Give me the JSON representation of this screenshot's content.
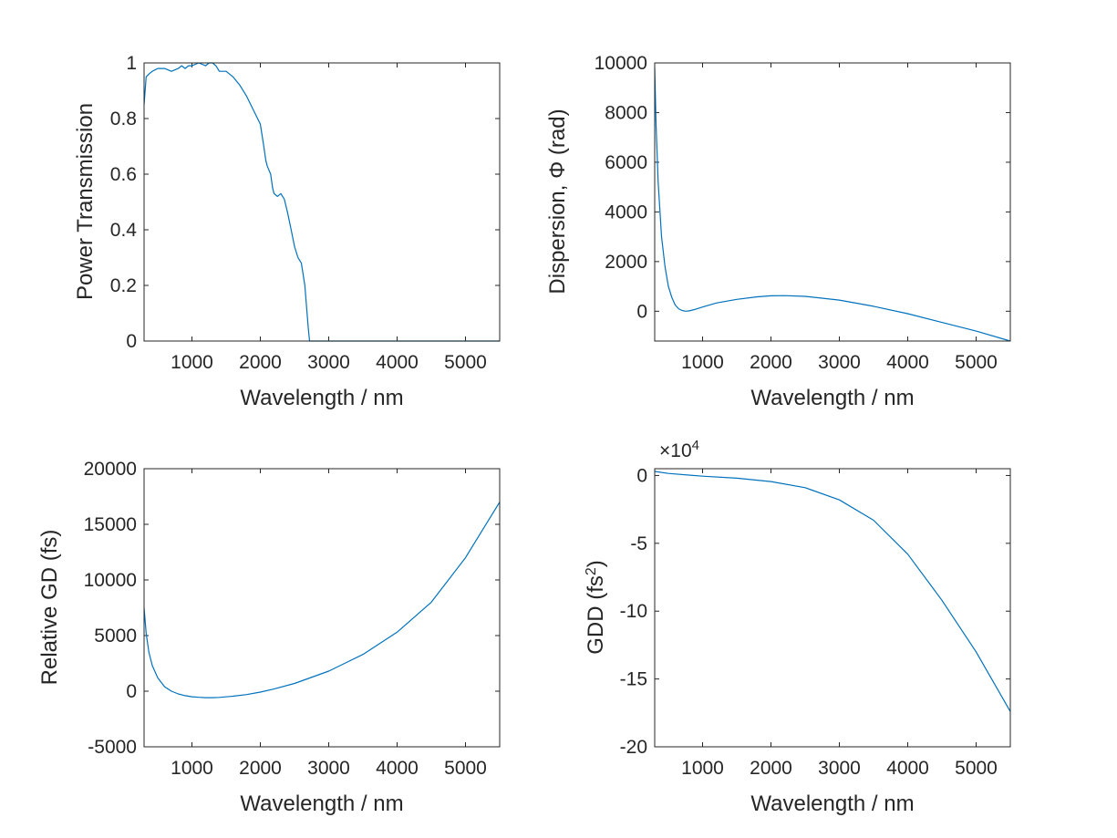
{
  "colors": {
    "series": "#0072BD",
    "axis": "#262626",
    "background": "#ffffff"
  },
  "chart_data": [
    {
      "type": "line",
      "xlabel": "Wavelength / nm",
      "ylabel": "Power Transmission",
      "xlim": [
        300,
        5500
      ],
      "ylim": [
        0,
        1
      ],
      "xticks": [
        1000,
        2000,
        3000,
        4000,
        5000
      ],
      "yticks": [
        0,
        0.2,
        0.4,
        0.6,
        0.8,
        1
      ],
      "ytick_labels": [
        "0",
        "0.2",
        "0.4",
        "0.6",
        "0.8",
        "1"
      ],
      "grid": false,
      "series": [
        {
          "x": [
            300,
            330,
            370,
            420,
            500,
            600,
            700,
            800,
            850,
            900,
            950,
            1000,
            1100,
            1200,
            1250,
            1300,
            1350,
            1400,
            1500,
            1600,
            1700,
            1800,
            1900,
            2000,
            2050,
            2080,
            2100,
            2150,
            2180,
            2200,
            2250,
            2300,
            2350,
            2400,
            2450,
            2500,
            2550,
            2600,
            2650,
            2700,
            2720,
            2800,
            3000,
            3500,
            4000,
            4500,
            5000,
            5500
          ],
          "y": [
            0.85,
            0.95,
            0.96,
            0.97,
            0.98,
            0.98,
            0.97,
            0.98,
            0.99,
            0.98,
            0.99,
            0.99,
            1.0,
            0.99,
            1.0,
            1.0,
            0.99,
            0.97,
            0.97,
            0.95,
            0.92,
            0.88,
            0.83,
            0.78,
            0.7,
            0.65,
            0.63,
            0.6,
            0.55,
            0.53,
            0.52,
            0.53,
            0.51,
            0.46,
            0.4,
            0.34,
            0.3,
            0.28,
            0.2,
            0.05,
            0.0,
            0.0,
            0.0,
            0.0,
            0.0,
            0.0,
            0.0,
            0.0
          ]
        }
      ]
    },
    {
      "type": "line",
      "xlabel": "Wavelength / nm",
      "ylabel": "Dispersion,  Φ  (rad)",
      "xlim": [
        300,
        5500
      ],
      "ylim": [
        -1200,
        10000
      ],
      "xticks": [
        1000,
        2000,
        3000,
        4000,
        5000
      ],
      "yticks": [
        0,
        2000,
        4000,
        6000,
        8000,
        10000
      ],
      "ytick_labels": [
        "0",
        "2000",
        "4000",
        "6000",
        "8000",
        "10000"
      ],
      "grid": false,
      "series": [
        {
          "x": [
            300,
            320,
            350,
            400,
            450,
            500,
            550,
            600,
            650,
            700,
            750,
            800,
            900,
            1000,
            1200,
            1500,
            1800,
            2000,
            2200,
            2500,
            3000,
            3500,
            4000,
            4500,
            5000,
            5500
          ],
          "y": [
            9800,
            7500,
            5200,
            3000,
            1800,
            1000,
            550,
            250,
            100,
            30,
            0,
            10,
            80,
            170,
            330,
            480,
            580,
            620,
            630,
            600,
            450,
            200,
            -100,
            -450,
            -800,
            -1200
          ]
        }
      ]
    },
    {
      "type": "line",
      "xlabel": "Wavelength / nm",
      "ylabel": "Relative GD (fs)",
      "xlim": [
        300,
        5500
      ],
      "ylim": [
        -5000,
        20000
      ],
      "xticks": [
        1000,
        2000,
        3000,
        4000,
        5000
      ],
      "yticks": [
        -5000,
        0,
        5000,
        10000,
        15000,
        20000
      ],
      "ytick_labels": [
        "-5000",
        "0",
        "5000",
        "10000",
        "15000",
        "20000"
      ],
      "grid": false,
      "series": [
        {
          "x": [
            300,
            330,
            370,
            420,
            500,
            600,
            700,
            800,
            900,
            1000,
            1100,
            1200,
            1300,
            1400,
            1600,
            1800,
            2000,
            2200,
            2500,
            3000,
            3500,
            4000,
            4500,
            5000,
            5500
          ],
          "y": [
            7500,
            5200,
            3500,
            2300,
            1200,
            400,
            0,
            -250,
            -400,
            -500,
            -550,
            -580,
            -580,
            -560,
            -450,
            -300,
            -80,
            200,
            700,
            1800,
            3300,
            5300,
            8000,
            12000,
            17000
          ]
        }
      ]
    },
    {
      "type": "line",
      "xlabel": "Wavelength / nm",
      "ylabel_main": "GDD  (fs",
      "ylabel_sup": "2",
      "ylabel_end": ")",
      "exponent_base": "×10",
      "exponent_power": "4",
      "xlim": [
        300,
        5500
      ],
      "ylim": [
        -20,
        0.5
      ],
      "xticks": [
        1000,
        2000,
        3000,
        4000,
        5000
      ],
      "yticks": [
        -20,
        -15,
        -10,
        -5,
        0
      ],
      "ytick_labels": [
        "-20",
        "-15",
        "-10",
        "-5",
        "0"
      ],
      "grid": false,
      "series": [
        {
          "x": [
            300,
            500,
            1000,
            1500,
            2000,
            2500,
            3000,
            3500,
            4000,
            4500,
            5000,
            5500
          ],
          "y": [
            0.3,
            0.15,
            -0.05,
            -0.2,
            -0.45,
            -0.9,
            -1.8,
            -3.3,
            -5.8,
            -9.2,
            -13.0,
            -17.4
          ]
        }
      ]
    }
  ]
}
